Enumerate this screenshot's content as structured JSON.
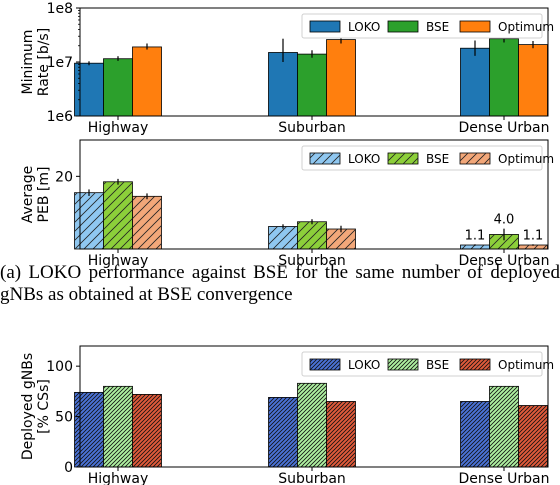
{
  "caption": "(a) LOKO performance against BSE for the same number of deployed gNBs as obtained at BSE convergence",
  "chart_data": [
    {
      "type": "bar",
      "ylabel": [
        "Minimum",
        "Rate [b/s]"
      ],
      "yscale": "log",
      "ylim": [
        1000000,
        100000000
      ],
      "yticks": [
        {
          "value": 1000000,
          "label": "1e6"
        },
        {
          "value": 10000000,
          "label": "1e7"
        },
        {
          "value": 100000000,
          "label": "1e8"
        }
      ],
      "categories": [
        "Highway",
        "Suburban",
        "Dense Urban"
      ],
      "legend_position": "top-right",
      "grid": false,
      "series": [
        {
          "name": "LOKO",
          "color": "#1f77b4",
          "hatch": "none",
          "values": [
            9500000,
            15000000,
            18000000
          ],
          "err_low": [
            8700000,
            10000000,
            13000000
          ],
          "err_high": [
            10300000,
            27000000,
            25000000
          ]
        },
        {
          "name": "BSE",
          "color": "#2ca02c",
          "hatch": "none",
          "values": [
            11500000,
            14000000,
            27000000
          ],
          "err_low": [
            10500000,
            12000000,
            23000000
          ],
          "err_high": [
            12800000,
            16500000,
            35000000
          ]
        },
        {
          "name": "Optimum",
          "color": "#ff7f0e",
          "hatch": "none",
          "values": [
            19000000,
            26000000,
            21000000
          ],
          "err_low": [
            17000000,
            22000000,
            18000000
          ],
          "err_high": [
            22000000,
            31000000,
            24500000
          ]
        }
      ]
    },
    {
      "type": "bar",
      "ylabel": [
        "Average",
        "PEB [m]"
      ],
      "yscale": "linear",
      "ylim": [
        0,
        30
      ],
      "yticks": [
        {
          "value": 20,
          "label": "20"
        }
      ],
      "categories": [
        "Highway",
        "Suburban",
        "Dense Urban"
      ],
      "legend_position": "top-right",
      "grid": false,
      "series": [
        {
          "name": "LOKO",
          "color": "#8fc7f0",
          "hatch": "diag",
          "values": [
            15.5,
            6.2,
            1.1
          ],
          "err": [
            0.9,
            0.6,
            0.2
          ]
        },
        {
          "name": "BSE",
          "color": "#8ccf3a",
          "hatch": "diag",
          "values": [
            18.5,
            7.5,
            4.0
          ],
          "err": [
            0.8,
            0.7,
            1.6
          ]
        },
        {
          "name": "Optimum",
          "color": "#f2a779",
          "hatch": "diag",
          "values": [
            14.5,
            5.5,
            1.1
          ],
          "err": [
            0.8,
            0.9,
            0.2
          ]
        }
      ],
      "data_labels": [
        {
          "category": 2,
          "series": 0,
          "text": "1.1"
        },
        {
          "category": 2,
          "series": 1,
          "text": "4.0"
        },
        {
          "category": 2,
          "series": 2,
          "text": "1.1"
        }
      ]
    },
    {
      "type": "bar",
      "ylabel": [
        "Deployed gNBs",
        "[% CSs]"
      ],
      "yscale": "linear",
      "ylim": [
        0,
        120
      ],
      "yticks": [
        {
          "value": 0,
          "label": "0"
        },
        {
          "value": 50,
          "label": "50"
        },
        {
          "value": 100,
          "label": "100"
        }
      ],
      "categories": [
        "Highway",
        "Suburban",
        "Dense Urban"
      ],
      "legend_position": "top-right",
      "grid": false,
      "series": [
        {
          "name": "LOKO",
          "color": "#4a72d6",
          "hatch": "dense",
          "values": [
            74,
            69,
            65
          ]
        },
        {
          "name": "BSE",
          "color": "#aef0a0",
          "hatch": "dense",
          "values": [
            80,
            83,
            80
          ]
        },
        {
          "name": "Optimum",
          "color": "#e05a3a",
          "hatch": "dense",
          "values": [
            72,
            65,
            61
          ]
        }
      ]
    }
  ]
}
